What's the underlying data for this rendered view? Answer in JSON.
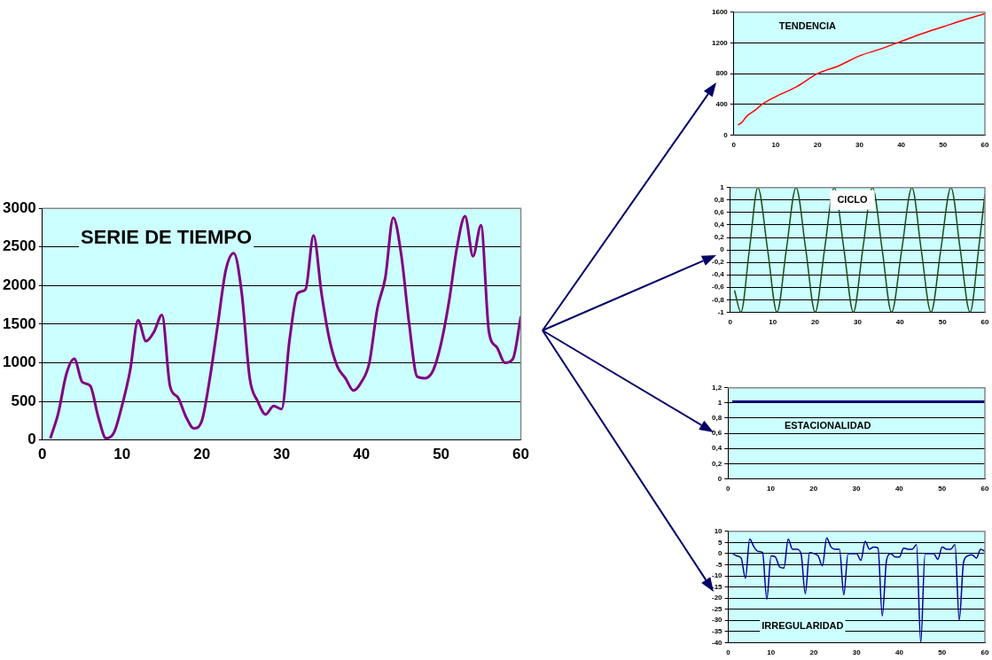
{
  "chart_data": [
    {
      "type": "line",
      "title": "SERIE DE TIEMPO",
      "color": "#800080",
      "grid": "y",
      "legend": false,
      "marker": "none",
      "xlim": [
        0,
        60
      ],
      "xticks": [
        0,
        10,
        20,
        30,
        40,
        50,
        60
      ],
      "ylim": [
        0,
        3000
      ],
      "yticks": [
        0,
        500,
        1000,
        1500,
        2000,
        2500,
        3000
      ],
      "x": [
        1,
        2,
        3,
        4,
        5,
        6,
        7,
        8,
        9,
        10,
        11,
        12,
        13,
        14,
        15,
        16,
        17,
        18,
        19,
        20,
        21,
        22,
        23,
        24,
        25,
        26,
        27,
        28,
        29,
        30,
        31,
        32,
        33,
        34,
        35,
        36,
        37,
        38,
        39,
        40,
        41,
        42,
        43,
        44,
        45,
        46,
        47,
        48,
        49,
        50,
        51,
        52,
        53,
        54,
        55,
        56,
        57,
        58,
        59,
        60
      ],
      "values": [
        20,
        350,
        850,
        1050,
        750,
        700,
        300,
        20,
        100,
        450,
        900,
        1550,
        1280,
        1400,
        1620,
        700,
        550,
        300,
        150,
        250,
        800,
        1500,
        2200,
        2420,
        1900,
        800,
        500,
        330,
        440,
        400,
        1300,
        1900,
        1950,
        2650,
        1900,
        1300,
        950,
        800,
        640,
        750,
        1000,
        1700,
        2100,
        2880,
        2400,
        1500,
        820,
        800,
        900,
        1250,
        1800,
        2500,
        2900,
        2380,
        2780,
        1400,
        1200,
        1000,
        1050,
        1600
      ]
    },
    {
      "type": "line",
      "title": "TENDENCIA",
      "color": "#ff0000",
      "grid": "y",
      "legend": false,
      "marker": "none",
      "xlim": [
        0,
        60
      ],
      "xticks": [
        0,
        10,
        20,
        30,
        40,
        50,
        60
      ],
      "ylim": [
        0,
        1600
      ],
      "yticks": [
        0,
        400,
        800,
        1200,
        1600
      ],
      "x": [
        1,
        2,
        3,
        5,
        7,
        10,
        15,
        20,
        25,
        30,
        35,
        40,
        45,
        50,
        55,
        60
      ],
      "values": [
        130,
        170,
        240,
        320,
        410,
        500,
        630,
        800,
        900,
        1030,
        1120,
        1220,
        1320,
        1410,
        1500,
        1580
      ]
    },
    {
      "type": "line",
      "title": "CICLO",
      "color": "#1a4d1a",
      "grid": "y",
      "legend": false,
      "marker": "none",
      "xlim": [
        0,
        60
      ],
      "xticks": [
        0,
        10,
        20,
        30,
        40,
        50,
        60
      ],
      "ylim": [
        -1,
        1
      ],
      "yticks": [
        {
          "value": -1,
          "label": "-1"
        },
        {
          "value": -0.8,
          "label": "-0,8"
        },
        {
          "value": -0.6,
          "label": "-0,6"
        },
        {
          "value": -0.4,
          "label": "-0,4"
        },
        {
          "value": -0.2,
          "label": "-0,2"
        },
        {
          "value": 0,
          "label": "0"
        },
        {
          "value": 0.2,
          "label": "0,2"
        },
        {
          "value": 0.4,
          "label": "0,4"
        },
        {
          "value": 0.6,
          "label": "0,6"
        },
        {
          "value": 0.8,
          "label": "0,8"
        },
        {
          "value": 1,
          "label": "1"
        }
      ],
      "x": [
        1,
        2.5,
        4.5,
        6.5,
        8.8,
        11,
        13.2,
        15.5,
        17.8,
        20,
        22.2,
        24.5,
        26.8,
        29,
        31.2,
        33.5,
        35.8,
        38,
        40.4,
        42.8,
        45,
        47.3,
        49.6,
        52,
        54.2,
        56.5,
        58.5,
        60
      ],
      "values": [
        -0.65,
        -1,
        0,
        1,
        0,
        -1,
        0,
        1,
        0,
        -1,
        0,
        1,
        0,
        -1,
        0,
        1,
        0,
        -1,
        0,
        1,
        0,
        -1,
        0,
        1,
        0,
        -1,
        0,
        0.9
      ]
    },
    {
      "type": "line",
      "title": "ESTACIONALIDAD",
      "color": "#000080",
      "grid": "y",
      "legend": false,
      "marker": "none",
      "xlim": [
        0,
        60
      ],
      "xticks": [
        0,
        10,
        20,
        30,
        40,
        50,
        60
      ],
      "ylim": [
        0,
        1.2
      ],
      "yticks": [
        {
          "value": 0,
          "label": "0"
        },
        {
          "value": 0.2,
          "label": "0,2"
        },
        {
          "value": 0.4,
          "label": "0,4"
        },
        {
          "value": 0.6,
          "label": "0,6"
        },
        {
          "value": 0.8,
          "label": "0,8"
        },
        {
          "value": 1,
          "label": "1"
        },
        {
          "value": 1.2,
          "label": "1,2"
        }
      ],
      "x": [
        1,
        60
      ],
      "values": [
        1.02,
        1.02
      ]
    },
    {
      "type": "line",
      "title": "IRREGULARIDAD",
      "color": "#000099",
      "grid": "y",
      "legend": false,
      "marker": "none",
      "xlim": [
        0,
        60
      ],
      "xticks": [
        0,
        10,
        20,
        30,
        40,
        50,
        60
      ],
      "ylim": [
        -40,
        10
      ],
      "yticks": [
        -40,
        -35,
        -30,
        -25,
        -20,
        -15,
        -10,
        -5,
        0,
        5,
        10
      ],
      "x": [
        1,
        2,
        3,
        4,
        5,
        6,
        7,
        8,
        9,
        10,
        11,
        12,
        13,
        14,
        15,
        16,
        17,
        18,
        19,
        20,
        21,
        22,
        23,
        24,
        25,
        26,
        27,
        28,
        29,
        30,
        31,
        32,
        33,
        34,
        35,
        36,
        37,
        38,
        39,
        40,
        41,
        42,
        43,
        44,
        45,
        46,
        47,
        48,
        49,
        50,
        51,
        52,
        53,
        54,
        55,
        56,
        57,
        58,
        59,
        60
      ],
      "values": [
        0,
        -1,
        -2,
        -11,
        6.5,
        3,
        1,
        0.5,
        -20.5,
        -1,
        -1.5,
        -6,
        -6.5,
        6.5,
        2,
        2,
        0,
        -18,
        0.5,
        0,
        -1,
        -5.5,
        7,
        3,
        2,
        2,
        -18.5,
        0,
        0,
        0,
        -3,
        5.5,
        2,
        3,
        2.5,
        -28,
        -3,
        0,
        -1.5,
        -1.5,
        2.5,
        2,
        2,
        4,
        -40,
        0,
        0,
        0,
        -2.5,
        3,
        2,
        2,
        4,
        -30,
        -4,
        -1,
        -0.5,
        -2,
        2,
        1
      ]
    }
  ]
}
